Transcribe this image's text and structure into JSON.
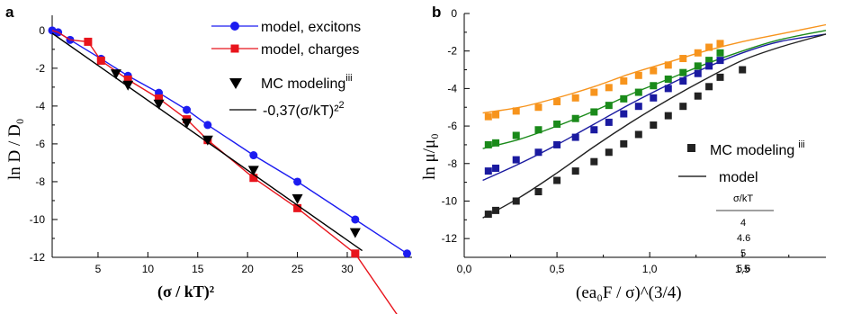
{
  "chart_data": [
    {
      "panel": "a",
      "type": "line",
      "xlabel": "(σ / kT)²",
      "ylabel": "ln D / D₀",
      "xlim": [
        0.4,
        36.5
      ],
      "ylim": [
        -12,
        0.8
      ],
      "xticks": [
        "5",
        "10",
        "15",
        "20",
        "25",
        "30"
      ],
      "yticks": [
        "0",
        "-2",
        "-4",
        "-6",
        "-8",
        "-10",
        "-12"
      ],
      "legend": {
        "position": "top-right",
        "entries": [
          "model, excitons",
          "model, charges",
          "MC modeling",
          "-0,37(σ/kT)²"
        ],
        "superscript": "iii",
        "fit_superscript": "2"
      },
      "series": [
        {
          "name": "model, excitons",
          "color": "#1c1cf0",
          "marker": "circle",
          "line": true,
          "x": [
            0.4,
            1.0,
            2.2,
            5.3,
            8.0,
            11.1,
            13.9,
            16.0,
            20.6,
            25.0,
            30.8,
            36.0
          ],
          "y": [
            0,
            -0.1,
            -0.5,
            -1.5,
            -2.4,
            -3.3,
            -4.2,
            -5.0,
            -6.6,
            -8.0,
            -10.0,
            -11.8
          ]
        },
        {
          "name": "model, charges",
          "color": "#e8141c",
          "marker": "square",
          "line": true,
          "x": [
            0.4,
            1.0,
            2.2,
            4.0,
            5.3,
            8.0,
            11.1,
            13.9,
            16.0,
            20.6,
            25.0,
            30.8,
            36.0
          ],
          "y": [
            0,
            -0.1,
            -0.5,
            -0.6,
            -1.6,
            -2.6,
            -3.6,
            -4.7,
            -5.8,
            -7.8,
            -9.4,
            -11.8,
            -15.8
          ],
          "marker_x": [
            4.0,
            5.3,
            8.0,
            11.1,
            13.9,
            16.0,
            20.6,
            25.0,
            30.8
          ],
          "marker_y": [
            -0.6,
            -1.6,
            -2.6,
            -3.6,
            -4.7,
            -5.8,
            -7.8,
            -9.4,
            -11.8
          ]
        },
        {
          "name": "MC modeling",
          "color": "#000000",
          "marker": "triangle-down",
          "line": false,
          "x": [
            6.8,
            8.0,
            11.1,
            13.9,
            16.0,
            20.6,
            25.0,
            30.8
          ],
          "y": [
            -2.3,
            -2.9,
            -3.9,
            -4.9,
            -5.8,
            -7.4,
            -8.9,
            -10.7
          ]
        },
        {
          "name": "-0,37(σ/kT)²",
          "color": "#000000",
          "marker": "none",
          "line": true,
          "x": [
            0.4,
            31.5
          ],
          "y": [
            -0.15,
            -11.65
          ]
        }
      ]
    },
    {
      "panel": "b",
      "type": "scatter",
      "xlabel": "(ea₀F / σ)^(3/4)",
      "ylabel": "ln μ/μ₀",
      "xlim": [
        0.0,
        1.95
      ],
      "ylim": [
        -13,
        0
      ],
      "xticks": [
        "0,0",
        "0,5",
        "1,0",
        "1,5"
      ],
      "yticks": [
        "0",
        "-2",
        "-4",
        "-6",
        "-8",
        "-10",
        "-12"
      ],
      "legend": {
        "position": "right",
        "entries": [
          "MC modeling",
          "model"
        ],
        "superscript": "iii",
        "table_header": "σ/kT",
        "table_values": [
          "4",
          "4.6",
          "5",
          "5.6"
        ]
      },
      "series": [
        {
          "name": "4",
          "color": "#f7941d",
          "x": [
            0.13,
            0.17,
            0.28,
            0.4,
            0.5,
            0.6,
            0.7,
            0.78,
            0.86,
            0.94,
            1.02,
            1.1,
            1.18,
            1.26,
            1.32,
            1.38
          ],
          "y": [
            -5.5,
            -5.4,
            -5.2,
            -5.0,
            -4.7,
            -4.5,
            -4.2,
            -3.95,
            -3.6,
            -3.3,
            -3.05,
            -2.75,
            -2.4,
            -2.1,
            -1.8,
            -1.6
          ],
          "curve_x": [
            0.1,
            0.3,
            0.5,
            0.7,
            0.9,
            1.1,
            1.3,
            1.5,
            1.7,
            1.95
          ],
          "curve_y": [
            -5.3,
            -5.0,
            -4.5,
            -3.9,
            -3.2,
            -2.6,
            -2.0,
            -1.5,
            -1.1,
            -0.6
          ]
        },
        {
          "name": "4.6",
          "color": "#1a8a1a",
          "x": [
            0.13,
            0.17,
            0.28,
            0.4,
            0.5,
            0.6,
            0.7,
            0.78,
            0.86,
            0.94,
            1.02,
            1.1,
            1.18,
            1.26,
            1.32,
            1.38
          ],
          "y": [
            -7.0,
            -6.9,
            -6.5,
            -6.2,
            -5.9,
            -5.6,
            -5.25,
            -4.9,
            -4.55,
            -4.2,
            -3.85,
            -3.5,
            -3.15,
            -2.8,
            -2.5,
            -2.1
          ],
          "curve_x": [
            0.1,
            0.3,
            0.5,
            0.7,
            0.9,
            1.1,
            1.3,
            1.5,
            1.7,
            1.95
          ],
          "curve_y": [
            -7.2,
            -6.7,
            -6.0,
            -5.2,
            -4.3,
            -3.5,
            -2.7,
            -2.0,
            -1.4,
            -0.9
          ]
        },
        {
          "name": "5",
          "color": "#1a1aa0",
          "x": [
            0.13,
            0.17,
            0.28,
            0.4,
            0.5,
            0.6,
            0.7,
            0.78,
            0.86,
            0.94,
            1.02,
            1.1,
            1.18,
            1.26,
            1.32,
            1.38
          ],
          "y": [
            -8.4,
            -8.25,
            -7.8,
            -7.4,
            -7.0,
            -6.6,
            -6.2,
            -5.8,
            -5.35,
            -4.95,
            -4.5,
            -4.0,
            -3.6,
            -3.2,
            -2.8,
            -2.5
          ],
          "curve_x": [
            0.1,
            0.3,
            0.5,
            0.7,
            0.9,
            1.1,
            1.3,
            1.5,
            1.7,
            1.95
          ],
          "curve_y": [
            -8.9,
            -8.0,
            -7.0,
            -5.9,
            -4.8,
            -3.8,
            -2.9,
            -2.1,
            -1.5,
            -1.1
          ]
        },
        {
          "name": "5.6",
          "color": "#222222",
          "x": [
            0.13,
            0.17,
            0.28,
            0.4,
            0.5,
            0.6,
            0.7,
            0.78,
            0.86,
            0.94,
            1.02,
            1.1,
            1.18,
            1.26,
            1.32,
            1.38,
            1.5
          ],
          "y": [
            -10.7,
            -10.5,
            -10.0,
            -9.5,
            -8.9,
            -8.4,
            -7.9,
            -7.4,
            -6.95,
            -6.45,
            -5.95,
            -5.45,
            -4.95,
            -4.4,
            -3.9,
            -3.4,
            -3.0
          ],
          "curve_x": [
            0.1,
            0.3,
            0.5,
            0.7,
            0.9,
            1.1,
            1.3,
            1.5,
            1.7,
            1.95
          ],
          "curve_y": [
            -10.9,
            -9.8,
            -8.5,
            -7.1,
            -5.8,
            -4.6,
            -3.5,
            -2.5,
            -1.8,
            -1.1
          ]
        }
      ]
    }
  ]
}
